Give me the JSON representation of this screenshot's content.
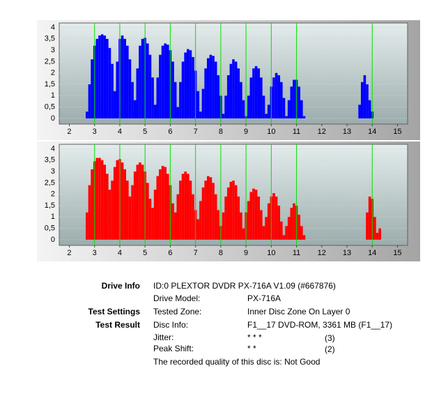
{
  "chart_data": [
    {
      "type": "bar",
      "color": "#0000ff",
      "marker_color": "#00e000",
      "markers": [
        3,
        4,
        5,
        6,
        7,
        8,
        9,
        10,
        11,
        14
      ],
      "xlim": [
        1.6,
        15.4
      ],
      "xticks": [
        2,
        3,
        4,
        5,
        6,
        7,
        8,
        9,
        10,
        11,
        12,
        13,
        14,
        15
      ],
      "ylim": [
        -0.25,
        4.2
      ],
      "yticks": [
        0,
        {
          "value": 0.5,
          "label": "0,5"
        },
        1,
        {
          "value": 1.5,
          "label": "1,5"
        },
        2,
        {
          "value": 2.5,
          "label": "2,5"
        },
        3,
        {
          "value": 3.5,
          "label": "3,5"
        },
        4
      ],
      "x": [
        2.5,
        2.6,
        2.7,
        2.8,
        2.9,
        3.0,
        3.1,
        3.2,
        3.3,
        3.4,
        3.5,
        3.6,
        3.7,
        3.8,
        3.9,
        4.0,
        4.1,
        4.2,
        4.3,
        4.4,
        4.5,
        4.6,
        4.7,
        4.8,
        4.9,
        5.0,
        5.1,
        5.2,
        5.3,
        5.4,
        5.5,
        5.6,
        5.7,
        5.8,
        5.9,
        6.0,
        6.1,
        6.2,
        6.3,
        6.4,
        6.5,
        6.6,
        6.7,
        6.8,
        6.9,
        7.0,
        7.1,
        7.2,
        7.3,
        7.4,
        7.5,
        7.6,
        7.7,
        7.8,
        7.9,
        8.0,
        8.1,
        8.2,
        8.3,
        8.4,
        8.5,
        8.6,
        8.7,
        8.8,
        8.9,
        9.0,
        9.1,
        9.2,
        9.3,
        9.4,
        9.5,
        9.6,
        9.7,
        9.8,
        9.9,
        10.0,
        10.1,
        10.2,
        10.3,
        10.4,
        10.5,
        10.6,
        10.7,
        10.8,
        10.9,
        11.0,
        11.1,
        11.2,
        11.3,
        11.4,
        11.5,
        11.6,
        11.7,
        11.8,
        11.9,
        12.0,
        12.1,
        12.2,
        12.3,
        12.4,
        12.5,
        12.6,
        12.7,
        12.8,
        12.9,
        13.0,
        13.1,
        13.2,
        13.3,
        13.4,
        13.5,
        13.6,
        13.7,
        13.8,
        13.9,
        14.0,
        14.1,
        14.2,
        14.3,
        14.4,
        14.5
      ],
      "values": [
        0,
        0,
        0.3,
        1.5,
        2.6,
        3.2,
        3.5,
        3.65,
        3.7,
        3.65,
        3.5,
        3.1,
        2.4,
        1.2,
        2.5,
        3.5,
        3.65,
        3.5,
        3.2,
        2.6,
        1.6,
        0.8,
        2.2,
        3.2,
        3.5,
        3.55,
        3.3,
        2.8,
        1.8,
        0.6,
        1.8,
        2.8,
        3.2,
        3.3,
        3.25,
        3.0,
        2.5,
        1.6,
        0.5,
        1.6,
        2.5,
        2.9,
        3.05,
        3.0,
        2.7,
        2.1,
        1.2,
        0.3,
        1.3,
        2.2,
        2.65,
        2.8,
        2.75,
        2.5,
        1.9,
        1.0,
        0.2,
        1.0,
        1.9,
        2.4,
        2.6,
        2.5,
        2.2,
        1.6,
        0.8,
        0.1,
        1.0,
        1.8,
        2.2,
        2.3,
        2.2,
        1.8,
        1.0,
        0.2,
        0.6,
        1.4,
        1.8,
        2.0,
        1.9,
        1.6,
        0.9,
        0.1,
        0.8,
        1.4,
        1.7,
        1.7,
        1.4,
        0.8,
        0.1,
        0,
        0,
        0,
        0,
        0,
        0,
        0,
        0,
        0,
        0,
        0,
        0,
        0,
        0,
        0,
        0,
        0,
        0,
        0,
        0,
        0,
        0.6,
        1.6,
        1.9,
        1.5,
        0.8,
        0.3,
        0,
        0,
        0,
        0,
        0
      ]
    },
    {
      "type": "bar",
      "color": "#ff0000",
      "marker_color": "#00e000",
      "markers": [
        3,
        4,
        5,
        6,
        7,
        8,
        9,
        10,
        11,
        14
      ],
      "xlim": [
        1.6,
        15.4
      ],
      "xticks": [
        2,
        3,
        4,
        5,
        6,
        7,
        8,
        9,
        10,
        11,
        12,
        13,
        14,
        15
      ],
      "ylim": [
        -0.25,
        4.2
      ],
      "yticks": [
        0,
        {
          "value": 0.5,
          "label": "0,5"
        },
        1,
        {
          "value": 1.5,
          "label": "1,5"
        },
        2,
        {
          "value": 2.5,
          "label": "2,5"
        },
        3,
        {
          "value": 3.5,
          "label": "3,5"
        },
        4
      ],
      "x": [
        2.5,
        2.6,
        2.7,
        2.8,
        2.9,
        3.0,
        3.1,
        3.2,
        3.3,
        3.4,
        3.5,
        3.6,
        3.7,
        3.8,
        3.9,
        4.0,
        4.1,
        4.2,
        4.3,
        4.4,
        4.5,
        4.6,
        4.7,
        4.8,
        4.9,
        5.0,
        5.1,
        5.2,
        5.3,
        5.4,
        5.5,
        5.6,
        5.7,
        5.8,
        5.9,
        6.0,
        6.1,
        6.2,
        6.3,
        6.4,
        6.5,
        6.6,
        6.7,
        6.8,
        6.9,
        7.0,
        7.1,
        7.2,
        7.3,
        7.4,
        7.5,
        7.6,
        7.7,
        7.8,
        7.9,
        8.0,
        8.1,
        8.2,
        8.3,
        8.4,
        8.5,
        8.6,
        8.7,
        8.8,
        8.9,
        9.0,
        9.1,
        9.2,
        9.3,
        9.4,
        9.5,
        9.6,
        9.7,
        9.8,
        9.9,
        10.0,
        10.1,
        10.2,
        10.3,
        10.4,
        10.5,
        10.6,
        10.7,
        10.8,
        10.9,
        11.0,
        11.1,
        11.2,
        11.3,
        11.4,
        11.5,
        11.6,
        11.7,
        11.8,
        11.9,
        12.0,
        12.1,
        12.2,
        12.3,
        12.4,
        12.5,
        12.6,
        12.7,
        12.8,
        12.9,
        13.0,
        13.1,
        13.2,
        13.3,
        13.4,
        13.5,
        13.6,
        13.7,
        13.8,
        13.9,
        14.0,
        14.1,
        14.2,
        14.3,
        14.4,
        14.5
      ],
      "values": [
        0,
        0,
        1.2,
        2.4,
        3.1,
        3.45,
        3.6,
        3.6,
        3.5,
        3.3,
        2.9,
        2.2,
        2.6,
        3.2,
        3.5,
        3.55,
        3.4,
        3.1,
        2.6,
        1.9,
        2.4,
        3.0,
        3.3,
        3.4,
        3.3,
        3.0,
        2.5,
        1.8,
        1.4,
        2.2,
        2.8,
        3.1,
        3.25,
        3.2,
        2.9,
        2.4,
        1.6,
        1.2,
        2.0,
        2.6,
        2.9,
        3.0,
        2.9,
        2.6,
        2.0,
        1.3,
        0.9,
        1.7,
        2.3,
        2.6,
        2.8,
        2.75,
        2.5,
        2.0,
        1.3,
        0.6,
        1.2,
        1.9,
        2.3,
        2.55,
        2.6,
        2.4,
        1.9,
        1.2,
        0.5,
        1.2,
        1.7,
        2.1,
        2.25,
        2.2,
        1.9,
        1.3,
        0.6,
        1.0,
        1.6,
        1.9,
        2.05,
        1.9,
        1.5,
        0.8,
        0.2,
        0.6,
        1.0,
        1.4,
        1.6,
        1.5,
        1.1,
        0.6,
        0.2,
        0,
        0,
        0,
        0,
        0,
        0,
        0,
        0,
        0,
        0,
        0,
        0,
        0,
        0,
        0,
        0,
        0,
        0,
        0,
        0,
        0,
        0,
        0,
        0,
        1.2,
        1.9,
        1.8,
        1.0,
        0.3,
        0.5,
        0,
        0
      ]
    }
  ],
  "info": {
    "rows": [
      {
        "section": "Drive Info",
        "text": "ID:0 PLEXTOR DVDR  PX-716A V1.09 (#667876)"
      },
      {
        "field": "Drive Model:",
        "value": "PX-716A"
      },
      {
        "section": "Test Settings",
        "field": "Tested Zone:",
        "value": "Inner Disc Zone On Layer 0"
      },
      {
        "section": "Test Result",
        "field": "Disc Info:",
        "value": "F1__17 DVD-ROM, 3361 MB (F1__17)"
      },
      {
        "field": "Jitter:",
        "value": "* * *",
        "score": "(3)"
      },
      {
        "field": "Peak Shift:",
        "value": "* *",
        "score": "(2)"
      },
      {
        "text": "The recorded quality of this disc is: Not Good"
      }
    ]
  }
}
